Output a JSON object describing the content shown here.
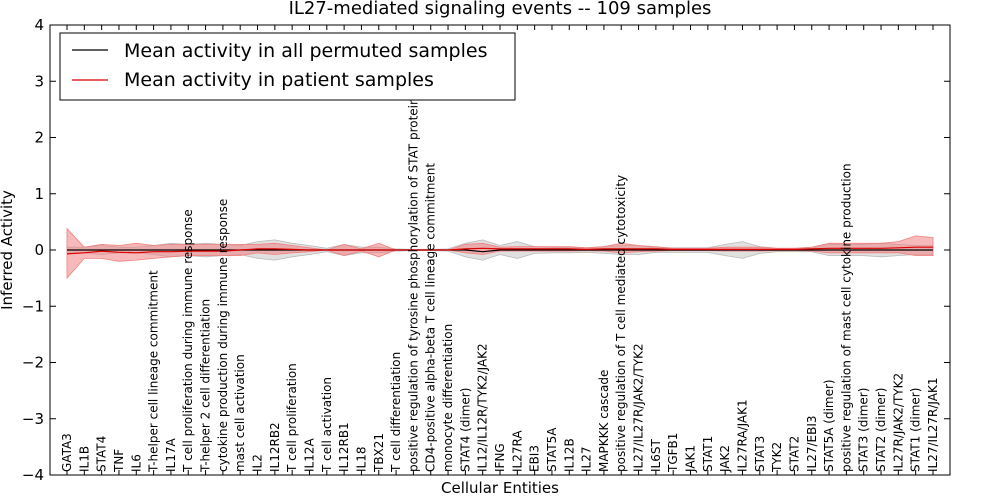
{
  "chart_data": {
    "type": "line",
    "title": "IL27-mediated signaling events -- 109 samples",
    "xlabel": "Cellular Entities",
    "ylabel": "Inferred Activity",
    "ylim": [
      -4,
      4
    ],
    "yticks": [
      "−4",
      "−3",
      "−2",
      "−1",
      "0",
      "1",
      "2",
      "3",
      "4"
    ],
    "grid": false,
    "legend_position": "top-left",
    "categories": [
      "GATA3",
      "IL1B",
      "STAT4",
      "TNF",
      "IL6",
      "T-helper cell lineage commitment",
      "IL17A",
      "T cell proliferation during immune response",
      "T-helper 2 cell differentiation",
      "cytokine production during immune response",
      "mast cell activation",
      "IL2",
      "IL12RB2",
      "T cell proliferation",
      "IL12A",
      "T cell activation",
      "IL12RB1",
      "IL18",
      "TBX21",
      "T cell differentiation",
      "positive regulation of tyrosine phosphorylation of STAT protein",
      "CD4-positive alpha-beta T cell lineage commitment",
      "monocyte differentiation",
      "STAT4 (dimer)",
      "IL12/IL12R/TYK2/JAK2",
      "IFNG",
      "IL27RA",
      "EBI3",
      "STAT5A",
      "IL12B",
      "IL27",
      "MAPKKK cascade",
      "positive regulation of T cell mediated cytotoxicity",
      "IL27/IL27R/JAK2/TYK2",
      "IL6ST",
      "TGFB1",
      "JAK1",
      "STAT1",
      "JAK2",
      "IL27RA/JAK1",
      "STAT3",
      "TYK2",
      "STAT2",
      "IL27/EBI3",
      "STAT5A (dimer)",
      "positive regulation of mast cell cytokine production",
      "STAT3 (dimer)",
      "STAT2 (dimer)",
      "IL27R/JAK2/TYK2",
      "STAT1 (dimer)",
      "IL27/IL27R/JAK1"
    ],
    "series": [
      {
        "name": "Mean activity in all permuted samples",
        "color": "#000000",
        "band_color": "#bbbbbb",
        "values": [
          0.0,
          0.0,
          0.0,
          0.0,
          0.0,
          0.0,
          0.0,
          0.0,
          0.0,
          0.0,
          0.0,
          0.0,
          0.0,
          0.0,
          0.0,
          0.0,
          0.0,
          0.0,
          0.0,
          0.0,
          0.0,
          0.0,
          0.0,
          0.0,
          -0.03,
          0.0,
          0.0,
          0.0,
          0.0,
          0.0,
          0.0,
          0.0,
          0.0,
          0.0,
          0.0,
          0.0,
          0.0,
          0.0,
          0.0,
          0.0,
          0.0,
          0.0,
          0.0,
          0.0,
          0.0,
          0.0,
          0.0,
          0.0,
          0.0,
          0.0,
          0.0
        ],
        "upper": [
          0.05,
          0.05,
          0.08,
          0.05,
          0.05,
          0.08,
          0.12,
          0.1,
          0.12,
          0.1,
          0.08,
          0.15,
          0.18,
          0.12,
          0.08,
          0.03,
          0.1,
          0.05,
          0.05,
          0.02,
          0.01,
          0.01,
          0.02,
          0.12,
          0.18,
          0.08,
          0.15,
          0.06,
          0.05,
          0.05,
          0.04,
          0.06,
          0.08,
          0.08,
          0.04,
          0.04,
          0.04,
          0.04,
          0.1,
          0.15,
          0.06,
          0.03,
          0.03,
          0.03,
          0.1,
          0.1,
          0.1,
          0.12,
          0.1,
          0.08,
          0.08
        ],
        "lower": [
          -0.05,
          -0.05,
          -0.08,
          -0.05,
          -0.05,
          -0.08,
          -0.12,
          -0.1,
          -0.12,
          -0.1,
          -0.08,
          -0.15,
          -0.18,
          -0.12,
          -0.08,
          -0.03,
          -0.1,
          -0.05,
          -0.05,
          -0.02,
          -0.01,
          -0.01,
          -0.02,
          -0.12,
          -0.18,
          -0.08,
          -0.15,
          -0.06,
          -0.05,
          -0.05,
          -0.04,
          -0.06,
          -0.08,
          -0.08,
          -0.04,
          -0.04,
          -0.04,
          -0.04,
          -0.1,
          -0.15,
          -0.06,
          -0.03,
          -0.03,
          -0.03,
          -0.1,
          -0.1,
          -0.1,
          -0.12,
          -0.1,
          -0.08,
          -0.08
        ]
      },
      {
        "name": "Mean activity in patient samples",
        "color": "#dd0000",
        "band_color": "#f08080",
        "values": [
          -0.07,
          -0.05,
          -0.02,
          -0.04,
          -0.05,
          -0.03,
          -0.03,
          -0.02,
          -0.02,
          -0.02,
          0.0,
          0.02,
          0.02,
          0.01,
          0.0,
          0.0,
          0.0,
          0.0,
          0.0,
          0.0,
          0.0,
          0.0,
          0.0,
          0.02,
          0.03,
          0.02,
          0.02,
          0.02,
          0.02,
          0.02,
          0.01,
          0.02,
          0.02,
          0.02,
          0.02,
          0.01,
          0.01,
          0.01,
          0.01,
          0.01,
          0.01,
          0.01,
          0.01,
          0.02,
          0.03,
          0.03,
          0.03,
          0.03,
          0.04,
          0.05,
          0.05
        ],
        "upper": [
          0.38,
          0.05,
          0.1,
          0.08,
          0.12,
          0.08,
          0.1,
          0.1,
          0.1,
          0.1,
          0.1,
          0.1,
          0.12,
          0.08,
          0.04,
          0.0,
          0.1,
          0.02,
          0.12,
          0.0,
          0.0,
          0.0,
          0.0,
          0.1,
          0.12,
          0.05,
          0.06,
          0.06,
          0.06,
          0.06,
          0.04,
          0.06,
          0.12,
          0.08,
          0.06,
          0.03,
          0.03,
          0.03,
          0.05,
          0.05,
          0.05,
          0.03,
          0.03,
          0.05,
          0.12,
          0.12,
          0.12,
          0.12,
          0.15,
          0.25,
          0.22
        ],
        "lower": [
          -0.5,
          -0.15,
          -0.15,
          -0.2,
          -0.18,
          -0.15,
          -0.12,
          -0.1,
          -0.1,
          -0.1,
          -0.1,
          -0.05,
          -0.08,
          -0.05,
          -0.03,
          0.0,
          -0.1,
          -0.02,
          -0.12,
          0.0,
          0.0,
          0.0,
          0.0,
          -0.05,
          -0.08,
          -0.02,
          -0.02,
          -0.02,
          -0.02,
          -0.02,
          -0.01,
          -0.02,
          -0.05,
          -0.03,
          -0.02,
          -0.01,
          -0.01,
          -0.01,
          -0.02,
          -0.02,
          -0.02,
          -0.01,
          -0.01,
          -0.02,
          -0.05,
          -0.05,
          -0.05,
          -0.05,
          -0.05,
          -0.1,
          -0.1
        ]
      }
    ]
  }
}
